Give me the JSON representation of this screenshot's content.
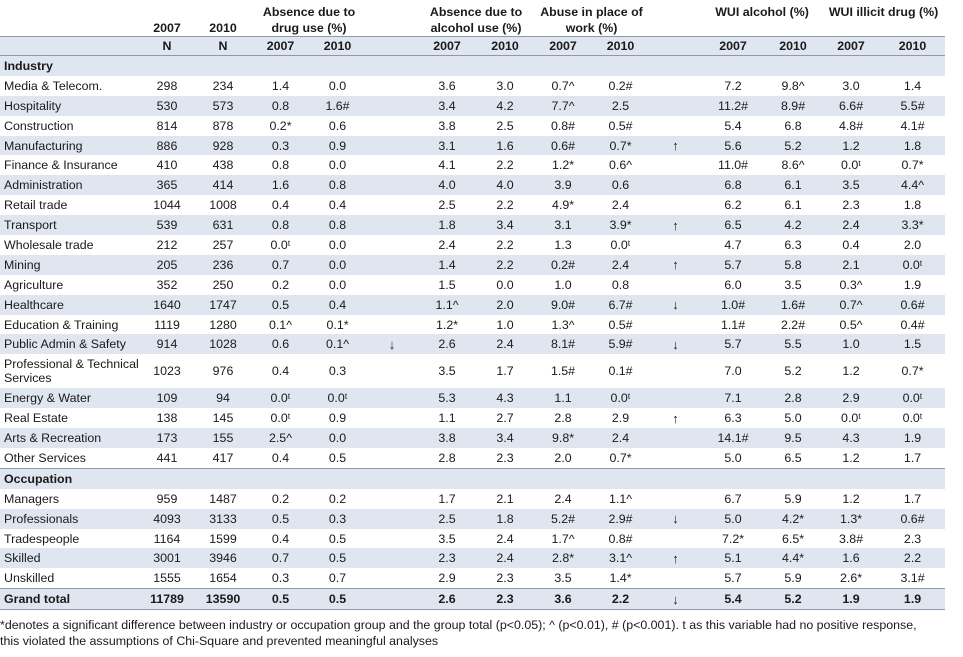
{
  "header": {
    "year_2007": "2007",
    "year_2010": "2010",
    "n_label": "N",
    "groups": [
      "Absence due to drug use (%)",
      "Absence due to alcohol use (%)",
      "Abuse in place of work (%)",
      "WUI alcohol (%)",
      "WUI illicit drug (%)"
    ]
  },
  "sections": [
    {
      "title": "Industry",
      "rows": [
        {
          "label": "Media & Telecom.",
          "n2007": "298",
          "n2010": "234",
          "d07": "1.4",
          "d10": "0.0",
          "arr1": "",
          "a07": "3.6",
          "a10": "3.0",
          "w07": "0.7^",
          "w10": "0.2#",
          "arr2": "",
          "u07": "7.2",
          "u10": "9.8^",
          "i07": "3.0",
          "i10": "1.4"
        },
        {
          "label": "Hospitality",
          "n2007": "530",
          "n2010": "573",
          "d07": "0.8",
          "d10": "1.6#",
          "arr1": "",
          "a07": "3.4",
          "a10": "4.2",
          "w07": "7.7^",
          "w10": "2.5",
          "arr2": "",
          "u07": "11.2#",
          "u10": "8.9#",
          "i07": "6.6#",
          "i10": "5.5#"
        },
        {
          "label": "Construction",
          "n2007": "814",
          "n2010": "878",
          "d07": "0.2*",
          "d10": "0.6",
          "arr1": "",
          "a07": "3.8",
          "a10": "2.5",
          "w07": "0.8#",
          "w10": "0.5#",
          "arr2": "",
          "u07": "5.4",
          "u10": "6.8",
          "i07": "4.8#",
          "i10": "4.1#"
        },
        {
          "label": "Manufacturing",
          "n2007": "886",
          "n2010": "928",
          "d07": "0.3",
          "d10": "0.9",
          "arr1": "",
          "a07": "3.1",
          "a10": "1.6",
          "w07": "0.6#",
          "w10": "0.7*",
          "arr2": "↑",
          "u07": "5.6",
          "u10": "5.2",
          "i07": "1.2",
          "i10": "1.8"
        },
        {
          "label": "Finance & Insurance",
          "n2007": "410",
          "n2010": "438",
          "d07": "0.8",
          "d10": "0.0",
          "arr1": "",
          "a07": "4.1",
          "a10": "2.2",
          "w07": "1.2*",
          "w10": "0.6^",
          "arr2": "",
          "u07": "11.0#",
          "u10": "8.6^",
          "i07": "0.0ᵗ",
          "i10": "0.7*"
        },
        {
          "label": "Administration",
          "n2007": "365",
          "n2010": "414",
          "d07": "1.6",
          "d10": "0.8",
          "arr1": "",
          "a07": "4.0",
          "a10": "4.0",
          "w07": "3.9",
          "w10": "0.6",
          "arr2": "",
          "u07": "6.8",
          "u10": "6.1",
          "i07": "3.5",
          "i10": "4.4^"
        },
        {
          "label": "Retail trade",
          "n2007": "1044",
          "n2010": "1008",
          "d07": "0.4",
          "d10": "0.4",
          "arr1": "",
          "a07": "2.5",
          "a10": "2.2",
          "w07": "4.9*",
          "w10": "2.4",
          "arr2": "",
          "u07": "6.2",
          "u10": "6.1",
          "i07": "2.3",
          "i10": "1.8"
        },
        {
          "label": "Transport",
          "n2007": "539",
          "n2010": "631",
          "d07": "0.8",
          "d10": "0.8",
          "arr1": "",
          "a07": "1.8",
          "a10": "3.4",
          "w07": "3.1",
          "w10": "3.9*",
          "arr2": "↑",
          "u07": "6.5",
          "u10": "4.2",
          "i07": "2.4",
          "i10": "3.3*"
        },
        {
          "label": "Wholesale trade",
          "n2007": "212",
          "n2010": "257",
          "d07": "0.0ᵗ",
          "d10": "0.0",
          "arr1": "",
          "a07": "2.4",
          "a10": "2.2",
          "w07": "1.3",
          "w10": "0.0ᵗ",
          "arr2": "",
          "u07": "4.7",
          "u10": "6.3",
          "i07": "0.4",
          "i10": "2.0"
        },
        {
          "label": "Mining",
          "n2007": "205",
          "n2010": "236",
          "d07": "0.7",
          "d10": "0.0",
          "arr1": "",
          "a07": "1.4",
          "a10": "2.2",
          "w07": "0.2#",
          "w10": "2.4",
          "arr2": "↑",
          "u07": "5.7",
          "u10": "5.8",
          "i07": "2.1",
          "i10": "0.0ᵗ"
        },
        {
          "label": "Agriculture",
          "n2007": "352",
          "n2010": "250",
          "d07": "0.2",
          "d10": "0.0",
          "arr1": "",
          "a07": "1.5",
          "a10": "0.0",
          "w07": "1.0",
          "w10": "0.8",
          "arr2": "",
          "u07": "6.0",
          "u10": "3.5",
          "i07": "0.3^",
          "i10": "1.9"
        },
        {
          "label": "Healthcare",
          "n2007": "1640",
          "n2010": "1747",
          "d07": "0.5",
          "d10": "0.4",
          "arr1": "",
          "a07": "1.1^",
          "a10": "2.0",
          "w07": "9.0#",
          "w10": "6.7#",
          "arr2": "↓",
          "u07": "1.0#",
          "u10": "1.6#",
          "i07": "0.7^",
          "i10": "0.6#"
        },
        {
          "label": "Education & Training",
          "n2007": "1119",
          "n2010": "1280",
          "d07": "0.1^",
          "d10": "0.1*",
          "arr1": "",
          "a07": "1.2*",
          "a10": "1.0",
          "w07": "1.3^",
          "w10": "0.5#",
          "arr2": "",
          "u07": "1.1#",
          "u10": "2.2#",
          "i07": "0.5^",
          "i10": "0.4#"
        },
        {
          "label": "Public Admin & Safety",
          "n2007": "914",
          "n2010": "1028",
          "d07": "0.6",
          "d10": "0.1^",
          "arr1": "↓",
          "a07": "2.6",
          "a10": "2.4",
          "w07": "8.1#",
          "w10": "5.9#",
          "arr2": "↓",
          "u07": "5.7",
          "u10": "5.5",
          "i07": "1.0",
          "i10": "1.5"
        },
        {
          "label": "Professional & Technical Services",
          "n2007": "1023",
          "n2010": "976",
          "d07": "0.4",
          "d10": "0.3",
          "arr1": "",
          "a07": "3.5",
          "a10": "1.7",
          "w07": "1.5#",
          "w10": "0.1#",
          "arr2": "",
          "u07": "7.0",
          "u10": "5.2",
          "i07": "1.2",
          "i10": "0.7*"
        },
        {
          "label": "Energy & Water",
          "n2007": "109",
          "n2010": "94",
          "d07": "0.0ᵗ",
          "d10": "0.0ᵗ",
          "arr1": "",
          "a07": "5.3",
          "a10": "4.3",
          "w07": "1.1",
          "w10": "0.0ᵗ",
          "arr2": "",
          "u07": "7.1",
          "u10": "2.8",
          "i07": "2.9",
          "i10": "0.0ᵗ"
        },
        {
          "label": "Real Estate",
          "n2007": "138",
          "n2010": "145",
          "d07": "0.0ᵗ",
          "d10": "0.9",
          "arr1": "",
          "a07": "1.1",
          "a10": "2.7",
          "w07": "2.8",
          "w10": "2.9",
          "arr2": "↑",
          "u07": "6.3",
          "u10": "5.0",
          "i07": "0.0ᵗ",
          "i10": "0.0ᵗ"
        },
        {
          "label": "Arts & Recreation",
          "n2007": "173",
          "n2010": "155",
          "d07": "2.5^",
          "d10": "0.0",
          "arr1": "",
          "a07": "3.8",
          "a10": "3.4",
          "w07": "9.8*",
          "w10": "2.4",
          "arr2": "",
          "u07": "14.1#",
          "u10": "9.5",
          "i07": "4.3",
          "i10": "1.9"
        },
        {
          "label": "Other Services",
          "n2007": "441",
          "n2010": "417",
          "d07": "0.4",
          "d10": "0.5",
          "arr1": "",
          "a07": "2.8",
          "a10": "2.3",
          "w07": "2.0",
          "w10": "0.7*",
          "arr2": "",
          "u07": "5.0",
          "u10": "6.5",
          "i07": "1.2",
          "i10": "1.7"
        }
      ]
    },
    {
      "title": "Occupation",
      "rows": [
        {
          "label": "Managers",
          "n2007": "959",
          "n2010": "1487",
          "d07": "0.2",
          "d10": "0.2",
          "arr1": "",
          "a07": "1.7",
          "a10": "2.1",
          "w07": "2.4",
          "w10": "1.1^",
          "arr2": "",
          "u07": "6.7",
          "u10": "5.9",
          "i07": "1.2",
          "i10": "1.7"
        },
        {
          "label": "Professionals",
          "n2007": "4093",
          "n2010": "3133",
          "d07": "0.5",
          "d10": "0.3",
          "arr1": "",
          "a07": "2.5",
          "a10": "1.8",
          "w07": "5.2#",
          "w10": "2.9#",
          "arr2": "↓",
          "u07": "5.0",
          "u10": "4.2*",
          "i07": "1.3*",
          "i10": "0.6#"
        },
        {
          "label": "Tradespeople",
          "n2007": "1164",
          "n2010": "1599",
          "d07": "0.4",
          "d10": "0.5",
          "arr1": "",
          "a07": "3.5",
          "a10": "2.4",
          "w07": "1.7^",
          "w10": "0.8#",
          "arr2": "",
          "u07": "7.2*",
          "u10": "6.5*",
          "i07": "3.8#",
          "i10": "2.3"
        },
        {
          "label": "Skilled",
          "n2007": "3001",
          "n2010": "3946",
          "d07": "0.7",
          "d10": "0.5",
          "arr1": "",
          "a07": "2.3",
          "a10": "2.4",
          "w07": "2.8*",
          "w10": "3.1^",
          "arr2": "↑",
          "u07": "5.1",
          "u10": "4.4*",
          "i07": "1.6",
          "i10": "2.2"
        },
        {
          "label": "Unskilled",
          "n2007": "1555",
          "n2010": "1654",
          "d07": "0.3",
          "d10": "0.7",
          "arr1": "",
          "a07": "2.9",
          "a10": "2.3",
          "w07": "3.5",
          "w10": "1.4*",
          "arr2": "",
          "u07": "5.7",
          "u10": "5.9",
          "i07": "2.6*",
          "i10": "3.1#"
        }
      ]
    }
  ],
  "total": {
    "label": "Grand total",
    "n2007": "11789",
    "n2010": "13590",
    "d07": "0.5",
    "d10": "0.5",
    "arr1": "",
    "a07": "2.6",
    "a10": "2.3",
    "w07": "3.6",
    "w10": "2.2",
    "arr2": "↓",
    "u07": "5.4",
    "u10": "5.2",
    "i07": "1.9",
    "i10": "1.9"
  },
  "footnote": [
    "*denotes a significant difference between industry or occupation group and the group total (p<0.05); ^ (p<0.01), # (p<0.001). t as this variable had no positive response,",
    "this violated the assumptions of Chi-Square and prevented meaningful analyses"
  ]
}
